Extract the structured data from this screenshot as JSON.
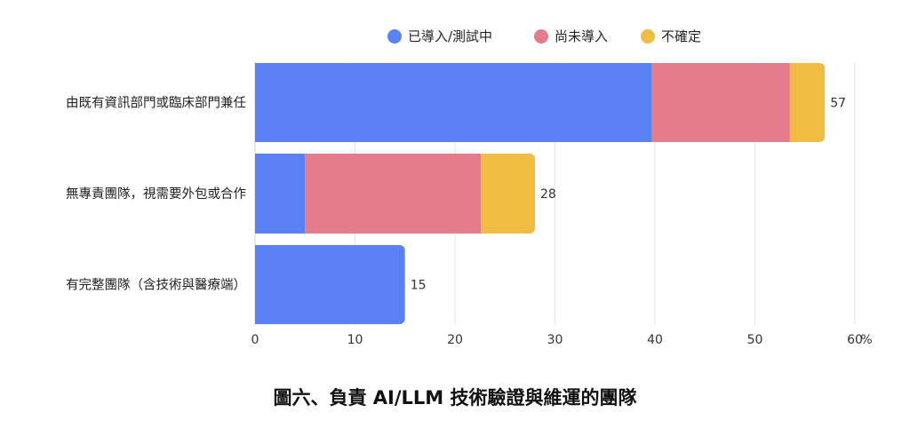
{
  "chart_data": {
    "type": "bar",
    "orientation": "horizontal",
    "stacked": true,
    "title": "圖六、負責 AI/LLM 技術驗證與維運的團隊",
    "categories": [
      "由既有資訊部門或臨床部門兼任",
      "無專責團隊，視需要外包或合作",
      "有完整團隊（含技術與醫療端）"
    ],
    "series": [
      {
        "name": "已導入/測試中",
        "color": "#5B82F5",
        "values": [
          39.7,
          5.0,
          15.0
        ]
      },
      {
        "name": "尚未導入",
        "color": "#E57C8C",
        "values": [
          13.8,
          17.6,
          0
        ]
      },
      {
        "name": "不確定",
        "color": "#F0BC42",
        "values": [
          3.5,
          5.4,
          0
        ]
      }
    ],
    "totals": [
      "57",
      "28",
      "15"
    ],
    "xlim": [
      0,
      60
    ],
    "xticks": [
      "0",
      "10",
      "20",
      "30",
      "40",
      "50",
      "60"
    ],
    "x_unit": "%",
    "grid": true,
    "legend_position": "top"
  }
}
